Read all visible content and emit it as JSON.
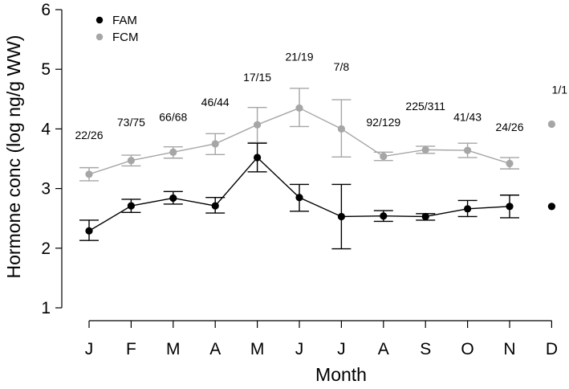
{
  "chart_data": {
    "type": "line",
    "xlabel": "Month",
    "ylabel": "Hormone conc (log ng/g WW)",
    "categories": [
      "J",
      "F",
      "M",
      "A",
      "M",
      "J",
      "J",
      "A",
      "S",
      "O",
      "N",
      "D"
    ],
    "ylim": [
      1,
      6
    ],
    "yticks": [
      "1",
      "2",
      "3",
      "4",
      "5",
      "6"
    ],
    "grid": false,
    "legend_position": "top-left",
    "series": [
      {
        "name": "FAM",
        "color": "#000000",
        "values": [
          2.29,
          2.71,
          2.84,
          2.71,
          3.52,
          2.85,
          2.53,
          2.54,
          2.53,
          2.66,
          2.7,
          2.7
        ],
        "err_low": [
          2.13,
          2.6,
          2.74,
          2.59,
          3.28,
          2.62,
          1.99,
          2.45,
          2.47,
          2.53,
          2.51,
          null
        ],
        "err_high": [
          2.47,
          2.82,
          2.95,
          2.85,
          3.76,
          3.07,
          3.07,
          2.63,
          2.58,
          2.8,
          2.89,
          null
        ],
        "connected": [
          true,
          true,
          true,
          true,
          true,
          true,
          true,
          true,
          true,
          true,
          true,
          false
        ]
      },
      {
        "name": "FCM",
        "color": "#a6a6a6",
        "values": [
          3.24,
          3.47,
          3.61,
          3.75,
          4.07,
          4.35,
          4.0,
          3.54,
          3.65,
          3.64,
          3.42,
          4.08
        ],
        "err_low": [
          3.13,
          3.38,
          3.51,
          3.57,
          3.77,
          4.04,
          3.53,
          3.47,
          3.59,
          3.52,
          3.33,
          null
        ],
        "err_high": [
          3.35,
          3.56,
          3.7,
          3.92,
          4.36,
          4.68,
          4.49,
          3.61,
          3.71,
          3.76,
          3.52,
          null
        ],
        "connected": [
          true,
          true,
          true,
          true,
          true,
          true,
          true,
          true,
          true,
          true,
          true,
          false
        ]
      }
    ],
    "annotations": [
      {
        "text": "22/26",
        "month_index": 0,
        "y": 3.9
      },
      {
        "text": "73/75",
        "month_index": 1,
        "y": 4.11
      },
      {
        "text": "66/68",
        "month_index": 2,
        "y": 4.2
      },
      {
        "text": "46/44",
        "month_index": 3,
        "y": 4.45
      },
      {
        "text": "17/15",
        "month_index": 4,
        "y": 4.87
      },
      {
        "text": "21/19",
        "month_index": 5,
        "y": 5.21
      },
      {
        "text": "7/8",
        "month_index": 6,
        "y": 5.04
      },
      {
        "text": "92/129",
        "month_index": 7,
        "y": 4.11
      },
      {
        "text": "225/311",
        "month_index": 8,
        "y": 4.38
      },
      {
        "text": "41/43",
        "month_index": 9,
        "y": 4.2
      },
      {
        "text": "24/26",
        "month_index": 10,
        "y": 4.03
      },
      {
        "text": "1/1",
        "month_index": 11,
        "y": 4.66
      }
    ]
  }
}
